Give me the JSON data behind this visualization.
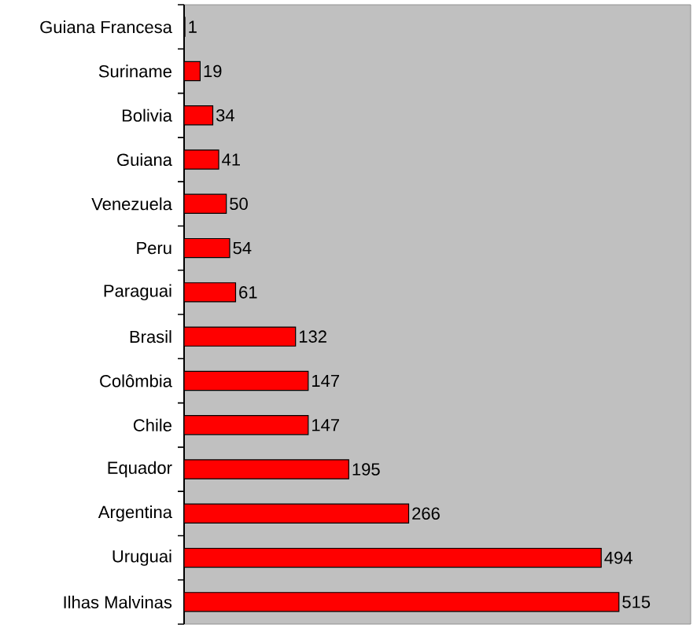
{
  "chart_data": {
    "type": "bar",
    "orientation": "horizontal",
    "categories": [
      "Guiana Francesa",
      "Suriname",
      "Bolivia",
      "Guiana",
      "Venezuela",
      "Peru",
      "Paraguai",
      "Brasil",
      "Colômbia",
      "Chile",
      "Equador",
      "Argentina",
      "Uruguai",
      "Ilhas Malvinas"
    ],
    "values": [
      1,
      19,
      34,
      41,
      50,
      54,
      61,
      132,
      147,
      147,
      195,
      266,
      494,
      515
    ],
    "color": "#ff0000",
    "xlim": [
      0,
      600
    ],
    "data_labels": true,
    "tick_labels": "y"
  }
}
